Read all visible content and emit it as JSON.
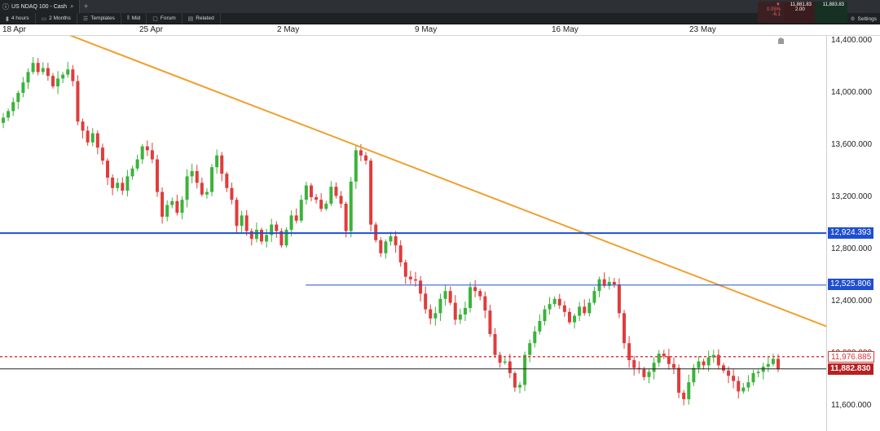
{
  "titlebar": {
    "instrument": "US NDAQ 100 - Cash",
    "add_tab": "+"
  },
  "toolbar": {
    "timeframe": "4 hours",
    "range": "2 Months",
    "templates": "Templates",
    "price_type": "Mid",
    "forum": "Forum",
    "related": "Related",
    "settings": "Settings"
  },
  "ticket": {
    "change_pct": "▼ 0.05%",
    "change_pts": "-6.1",
    "sell": "11,881.83",
    "buy": "11,883.83",
    "spread": "2.00"
  },
  "x_labels": [
    "18 Apr",
    "25 Apr",
    "2 May",
    "9 May",
    "16 May",
    "23 May"
  ],
  "y_labels": [
    "14,400.000",
    "14,000.000",
    "13,600.000",
    "13,200.000",
    "12,800.000",
    "12,400.000",
    "12,000.000",
    "11,600.000"
  ],
  "price_tags": {
    "resistance_high": "12,924.393",
    "resistance_mid": "12,525.806",
    "ask": "11,976.885",
    "last": "11,882.830"
  },
  "colors": {
    "up": "#3bb33b",
    "down": "#e03c3c",
    "trend": "#f0a030",
    "level": "#1f4fd0",
    "ask": "#e03c3c"
  },
  "chart_data": {
    "type": "candlestick",
    "xlabel": "",
    "ylabel": "",
    "ylim": [
      11500,
      14420
    ],
    "x_tick_labels": [
      "18 Apr",
      "25 Apr",
      "2 May",
      "9 May",
      "16 May",
      "23 May"
    ],
    "y_ticks": [
      14400,
      14000,
      13600,
      13200,
      12800,
      12400,
      12000,
      11600
    ],
    "trendline": {
      "from": [
        "18 Apr",
        14460
      ],
      "to": [
        "26 May",
        12210
      ]
    },
    "levels": [
      {
        "name": "12,924.393",
        "value": 12924.393
      },
      {
        "name": "12,525.806",
        "value": 12525.806,
        "from": "3 May"
      },
      {
        "name": "11,976.885",
        "value": 11976.885,
        "style": "dashed"
      },
      {
        "name": "11,882.830",
        "value": 11882.83
      }
    ],
    "candle_closes": [
      13810,
      13860,
      13930,
      14000,
      14080,
      14160,
      14230,
      14160,
      14190,
      14130,
      14050,
      14110,
      14140,
      14180,
      14090,
      13780,
      13710,
      13620,
      13690,
      13580,
      13480,
      13350,
      13270,
      13310,
      13250,
      13360,
      13420,
      13490,
      13590,
      13560,
      13490,
      13240,
      13050,
      13140,
      13170,
      13080,
      13180,
      13360,
      13400,
      13310,
      13220,
      13240,
      13430,
      13520,
      13380,
      13270,
      13180,
      12980,
      13060,
      12940,
      12880,
      12950,
      12860,
      12910,
      12990,
      12940,
      12830,
      12950,
      13060,
      13020,
      13180,
      13290,
      13200,
      13180,
      13110,
      13150,
      13280,
      13210,
      13150,
      12940,
      13320,
      13560,
      13520,
      13480,
      12990,
      12870,
      12770,
      12860,
      12900,
      12830,
      12700,
      12590,
      12570,
      12560,
      12460,
      12340,
      12270,
      12310,
      12420,
      12480,
      12390,
      12260,
      12300,
      12350,
      12510,
      12480,
      12440,
      12330,
      12150,
      11990,
      11930,
      11940,
      11850,
      11740,
      11760,
      11990,
      12080,
      12170,
      12250,
      12340,
      12380,
      12420,
      12370,
      12320,
      12240,
      12290,
      12360,
      12310,
      12390,
      12480,
      12570,
      12520,
      12550,
      12530,
      12310,
      12080,
      11950,
      11890,
      11880,
      11820,
      11860,
      11930,
      12000,
      11980,
      11920,
      11890,
      11700,
      11650,
      11780,
      11890,
      11940,
      11910,
      11970,
      11990,
      11910,
      11870,
      11830,
      11790,
      11710,
      11740,
      11780,
      11850,
      11860,
      11900,
      11920,
      11960,
      11880
    ]
  }
}
